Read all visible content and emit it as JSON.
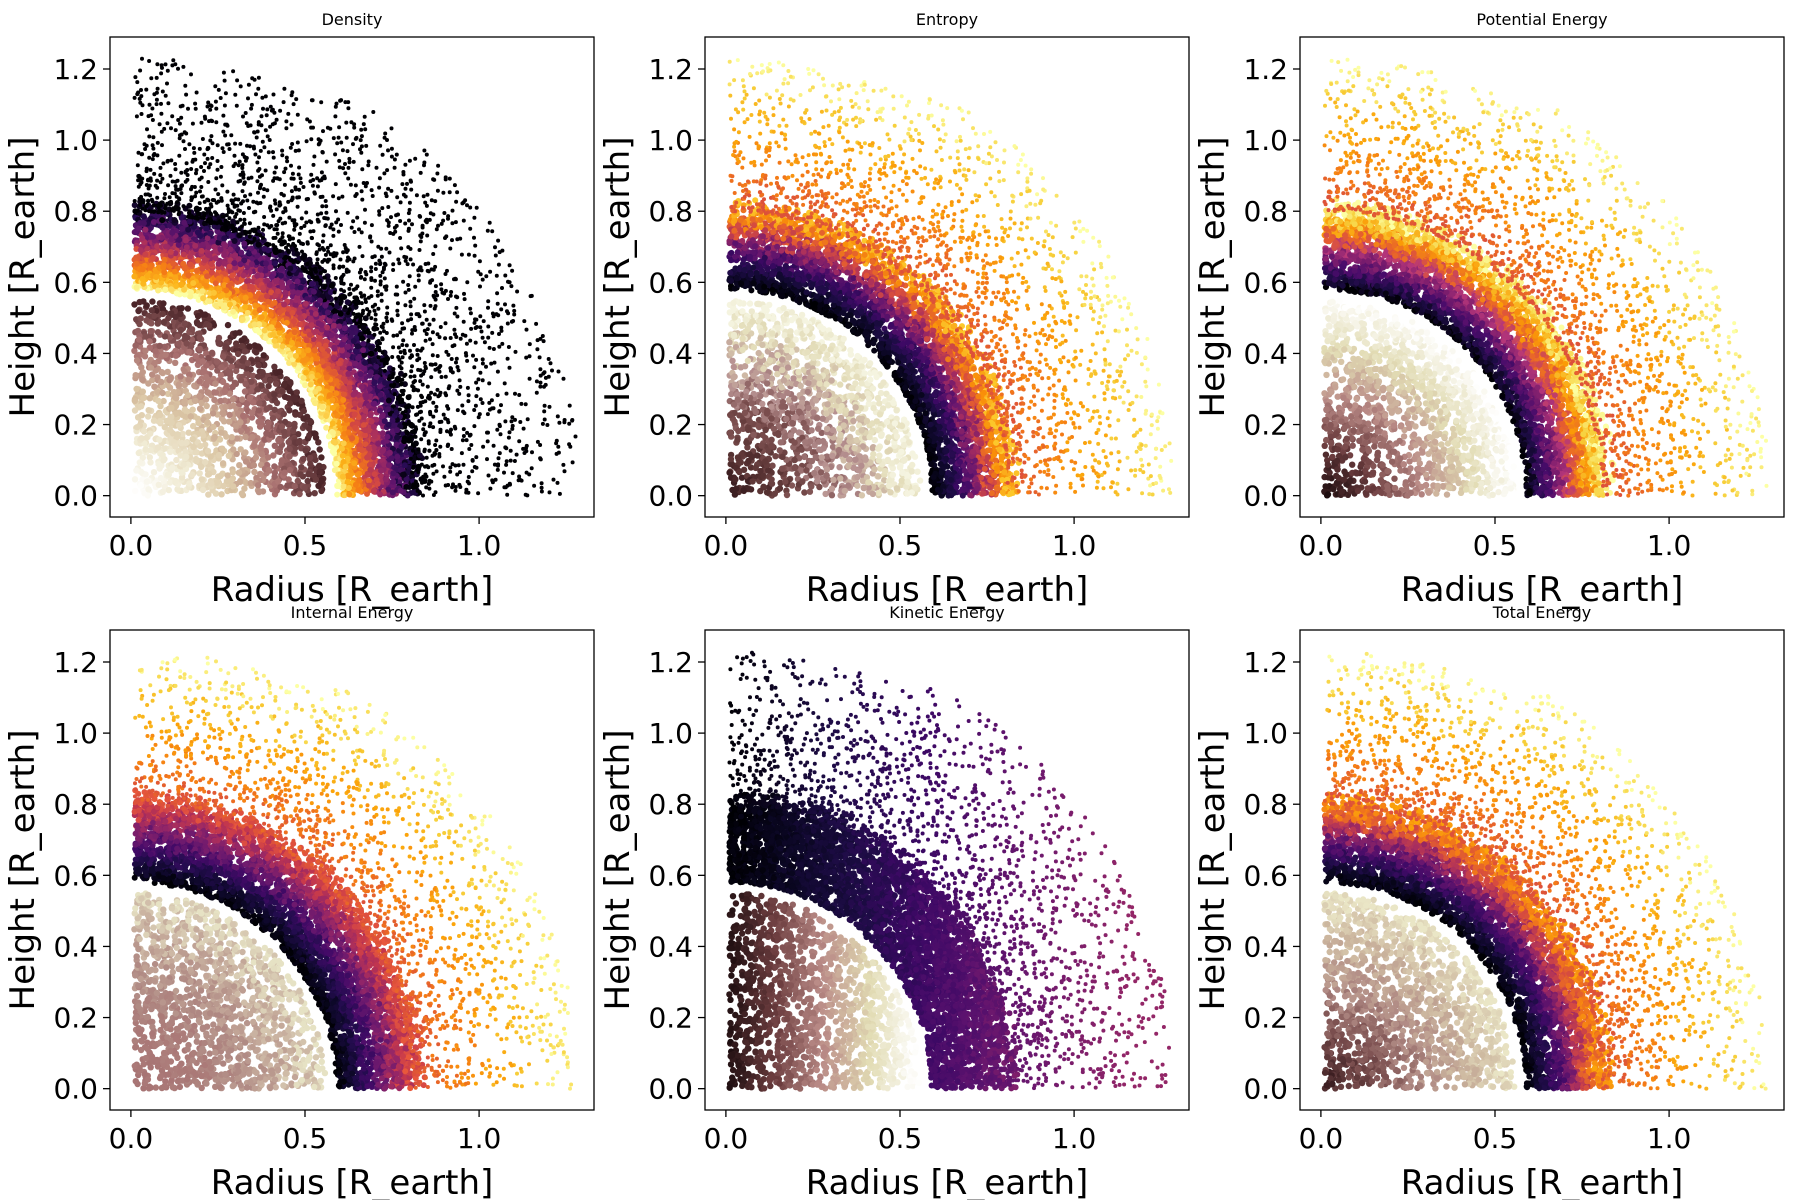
{
  "chart_data": [
    {
      "type": "scatter",
      "title": "Density",
      "xlabel": "Radius [R_earth]",
      "ylabel": "Height [R_earth]",
      "xlim": [
        -0.06,
        1.33
      ],
      "ylim": [
        -0.06,
        1.29
      ],
      "xticks": [
        "0.0",
        "0.5",
        "1.0"
      ],
      "yticks": [
        "0.0",
        "0.2",
        "0.4",
        "0.6",
        "0.8",
        "1.0",
        "1.2"
      ],
      "colormap": "inferno",
      "core_colormap": "pink",
      "core_radius": 0.55,
      "mantle_radius": 1.28,
      "core": {
        "mode": "distance",
        "stops": [
          "#ffffff",
          "#f1ecd6",
          "#dcc8a6",
          "#a86f6f",
          "#4a2428"
        ],
        "noise": 0.05
      },
      "mantle": {
        "mode": "distance",
        "stops": [
          "#fcffa4",
          "#fcb519",
          "#f57d15",
          "#d44842",
          "#9f2a63",
          "#65156e",
          "#280b54",
          "#000004"
        ],
        "noise": 0.06
      },
      "outer": {
        "mode": "black"
      },
      "grid": false,
      "legend": false
    },
    {
      "type": "scatter",
      "title": "Entropy",
      "xlabel": "Radius [R_earth]",
      "ylabel": "Height [R_earth]",
      "xlim": [
        -0.06,
        1.33
      ],
      "ylim": [
        -0.06,
        1.29
      ],
      "xticks": [
        "0.0",
        "0.5",
        "1.0"
      ],
      "yticks": [
        "0.0",
        "0.2",
        "0.4",
        "0.6",
        "0.8",
        "1.0",
        "1.2"
      ],
      "colormap": "inferno",
      "core_colormap": "pink",
      "core_radius": 0.55,
      "mantle_radius": 1.28,
      "core": {
        "mode": "distance",
        "stops": [
          "#3d1f22",
          "#5a3434",
          "#7d5050",
          "#b69090",
          "#e3dcb8",
          "#f5f4e0"
        ],
        "noise": 0.12
      },
      "mantle": {
        "mode": "distance",
        "stops": [
          "#000004",
          "#0b0724",
          "#1d0c45",
          "#3d0965",
          "#6a176e",
          "#a52c60",
          "#dd513a",
          "#f98e09",
          "#fcc82b"
        ],
        "noise": 0.07
      },
      "outer": {
        "mode": "yellow"
      },
      "grid": false,
      "legend": false
    },
    {
      "type": "scatter",
      "title": "Potential Energy",
      "xlabel": "Radius [R_earth]",
      "ylabel": "Height [R_earth]",
      "xlim": [
        -0.06,
        1.33
      ],
      "ylim": [
        -0.06,
        1.29
      ],
      "xticks": [
        "0.0",
        "0.5",
        "1.0"
      ],
      "yticks": [
        "0.0",
        "0.2",
        "0.4",
        "0.6",
        "0.8",
        "1.0",
        "1.2"
      ],
      "colormap": "inferno",
      "core_colormap": "pink",
      "core_radius": 0.55,
      "mantle_radius": 1.28,
      "core": {
        "mode": "distance",
        "stops": [
          "#1e0e10",
          "#6b3c3e",
          "#b98a86",
          "#e2dcb4",
          "#ffffff"
        ],
        "noise": 0.05
      },
      "mantle": {
        "mode": "distance",
        "stops": [
          "#000004",
          "#1d0c45",
          "#4a0c6b",
          "#7c1d6d",
          "#b5367a",
          "#e55c30",
          "#fb9b06",
          "#f7d03c",
          "#fcffa4"
        ],
        "noise": 0.06
      },
      "outer": {
        "mode": "yellow"
      },
      "grid": false,
      "legend": false
    },
    {
      "type": "scatter",
      "title": "Internal Energy",
      "xlabel": "Radius [R_earth]",
      "ylabel": "Height [R_earth]",
      "xlim": [
        -0.06,
        1.33
      ],
      "ylim": [
        -0.06,
        1.29
      ],
      "xticks": [
        "0.0",
        "0.5",
        "1.0"
      ],
      "yticks": [
        "0.0",
        "0.2",
        "0.4",
        "0.6",
        "0.8",
        "1.0",
        "1.2"
      ],
      "colormap": "inferno",
      "core_colormap": "pink",
      "core_radius": 0.55,
      "mantle_radius": 1.28,
      "core": {
        "mode": "distance",
        "stops": [
          "#a77474",
          "#ab7a78",
          "#b08a84",
          "#c4a99a",
          "#e6e2c4"
        ],
        "noise": 0.14
      },
      "mantle": {
        "mode": "distance",
        "stops": [
          "#000004",
          "#0d0829",
          "#240c4f",
          "#440a68",
          "#6e1a6e",
          "#982766",
          "#c4374d",
          "#e8583b"
        ],
        "noise": 0.07
      },
      "outer": {
        "mode": "yellow"
      },
      "grid": false,
      "legend": false
    },
    {
      "type": "scatter",
      "title": "Kinetic Energy",
      "xlabel": "Radius [R_earth]",
      "ylabel": "Height [R_earth]",
      "xlim": [
        -0.06,
        1.33
      ],
      "ylim": [
        -0.06,
        1.29
      ],
      "xticks": [
        "0.0",
        "0.5",
        "1.0"
      ],
      "yticks": [
        "0.0",
        "0.2",
        "0.4",
        "0.6",
        "0.8",
        "1.0",
        "1.2"
      ],
      "colormap": "inferno",
      "core_colormap": "pink",
      "core_radius": 0.55,
      "mantle_radius": 1.28,
      "core": {
        "mode": "x",
        "stops": [
          "#1e0e10",
          "#6b3c3e",
          "#b98a86",
          "#e2dcb4",
          "#ffffff"
        ],
        "noise": 0.03
      },
      "mantle": {
        "mode": "x",
        "stops": [
          "#000004",
          "#0b0724",
          "#1d0c45",
          "#3d0965",
          "#5c126e",
          "#8a226a",
          "#b73659",
          "#dc4c3f"
        ],
        "noise": 0.05
      },
      "outer": {
        "mode": "xblack"
      },
      "grid": false,
      "legend": false
    },
    {
      "type": "scatter",
      "title": "Total Energy",
      "xlabel": "Radius [R_earth]",
      "ylabel": "Height [R_earth]",
      "xlim": [
        -0.06,
        1.33
      ],
      "ylim": [
        -0.06,
        1.29
      ],
      "xticks": [
        "0.0",
        "0.5",
        "1.0"
      ],
      "yticks": [
        "0.0",
        "0.2",
        "0.4",
        "0.6",
        "0.8",
        "1.0",
        "1.2"
      ],
      "colormap": "inferno",
      "core_colormap": "pink",
      "core_radius": 0.55,
      "mantle_radius": 1.28,
      "core": {
        "mode": "distance",
        "stops": [
          "#3d1f22",
          "#7a4e4e",
          "#b08a84",
          "#cdb8a0",
          "#eae6c6"
        ],
        "noise": 0.1
      },
      "mantle": {
        "mode": "distance",
        "stops": [
          "#000004",
          "#0b0724",
          "#210c4a",
          "#420a68",
          "#6a176e",
          "#a52c60",
          "#d44842",
          "#f57d15",
          "#fba40a"
        ],
        "noise": 0.06
      },
      "outer": {
        "mode": "yellow"
      },
      "grid": false,
      "legend": false
    }
  ]
}
